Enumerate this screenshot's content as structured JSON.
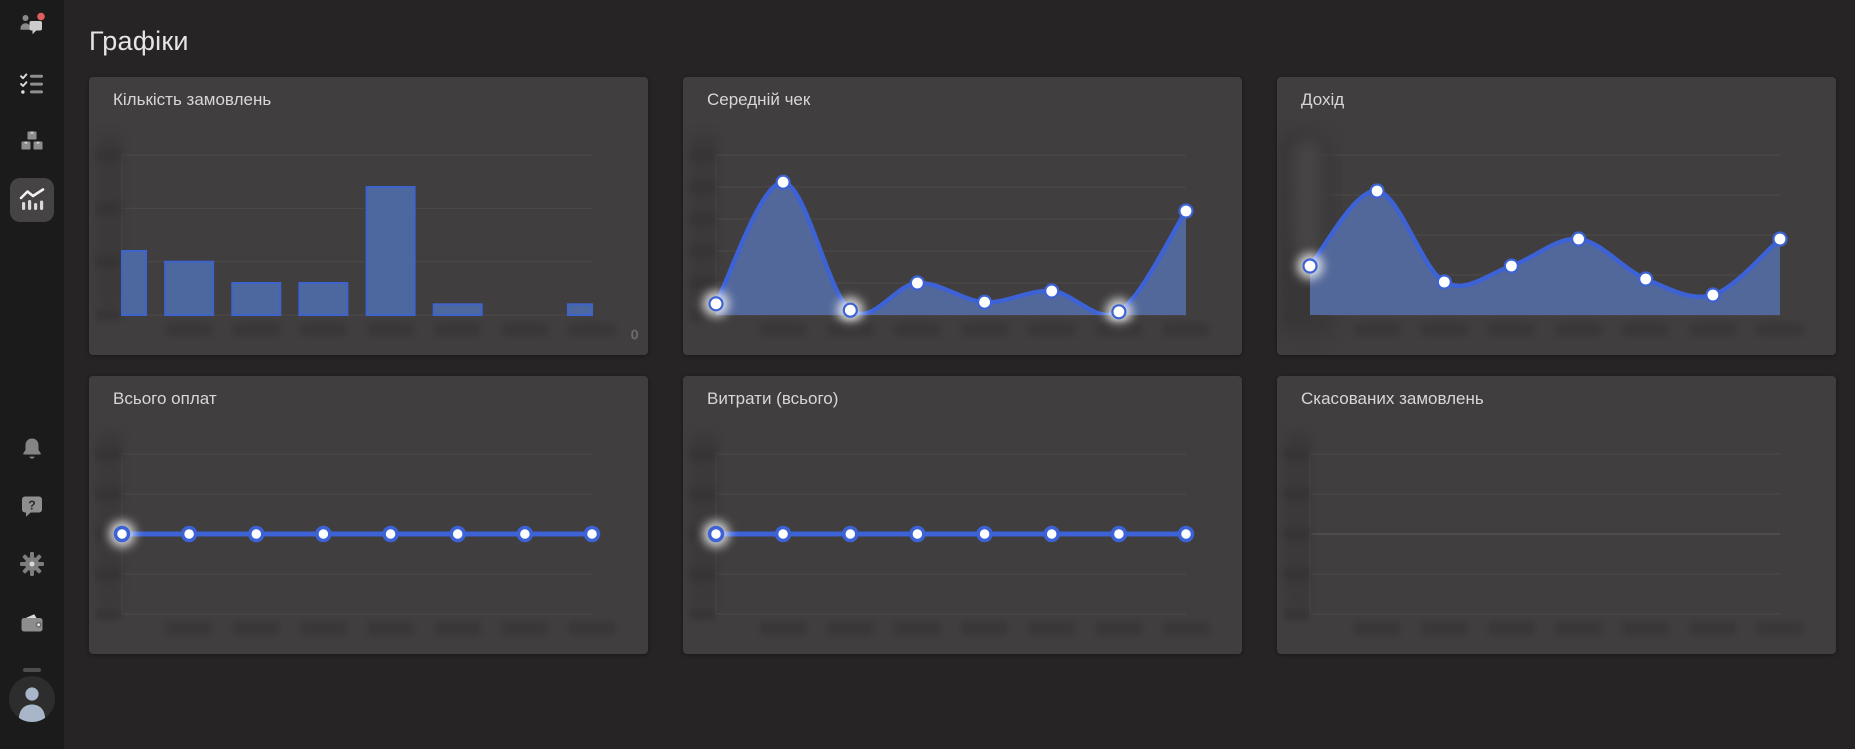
{
  "page": {
    "title": "Графіки"
  },
  "sidebar": {
    "items": [
      {
        "id": "clients",
        "icon": "people-chat-icon",
        "badge": true
      },
      {
        "id": "orders",
        "icon": "checklist-icon"
      },
      {
        "id": "products",
        "icon": "boxes-icon"
      },
      {
        "id": "analytics",
        "icon": "chart-icon",
        "active": true
      },
      {
        "id": "notifications",
        "icon": "bell-icon"
      },
      {
        "id": "help",
        "icon": "help-icon"
      },
      {
        "id": "settings",
        "icon": "gear-icon"
      },
      {
        "id": "billing",
        "icon": "wallet-icon"
      },
      {
        "id": "profile",
        "icon": "avatar-icon"
      }
    ],
    "badge_color": "#e25d5d"
  },
  "colors": {
    "page_bg": "#262424",
    "sidebar_bg": "#1c1b1b",
    "card_bg": "#403e3e",
    "grid": "#4b4949",
    "zero_line": "#585555",
    "accent": "#3c62d5",
    "area_fill": "#53689a",
    "bar_fill": "#4d689e",
    "bar_stroke": "#3e63cc",
    "dot_fill": "#ffffff",
    "smudge": "#353333",
    "heading_text": "#e6e4e4",
    "card_title_text": "#d8d6d6"
  },
  "chart_data": [
    {
      "type": "bar",
      "title": "Кількість замовлень",
      "categories_note": "8 time buckets — x tick labels blurred/redacted in screenshot",
      "values": [
        6,
        5,
        3,
        3,
        12,
        1,
        0,
        1
      ],
      "ylim": [
        0,
        15
      ],
      "divisions": 3,
      "x_ticks_blurred": true,
      "y_ticks_blurred": true,
      "stray_label": "0"
    },
    {
      "type": "area",
      "title": "Середній чек",
      "categories_note": "8 time buckets — x tick labels blurred/redacted in screenshot",
      "values": [
        35,
        415,
        15,
        100,
        40,
        75,
        10,
        325
      ],
      "ylim": [
        0,
        500
      ],
      "divisions": 5,
      "glow": [
        0,
        2,
        6
      ],
      "x_ticks_blurred": true,
      "y_ticks_blurred": true
    },
    {
      "type": "area",
      "title": "Дохід",
      "categories_note": "8 time buckets — x tick labels blurred/redacted in screenshot",
      "values": [
        2450,
        6200,
        1650,
        2450,
        3800,
        1800,
        1000,
        3800
      ],
      "ylim": [
        0,
        8000
      ],
      "divisions": 4,
      "glow": [
        0
      ],
      "big_smudge": true,
      "x_ticks_blurred": true,
      "y_ticks_blurred": true
    },
    {
      "type": "line",
      "title": "Всього оплат",
      "categories_note": "8 time buckets — x tick labels blurred/redacted in screenshot",
      "values": [
        0,
        0,
        0,
        0,
        0,
        0,
        0,
        0
      ],
      "ylim": [
        -1,
        1
      ],
      "divisions": 4,
      "glow": [
        0
      ],
      "x_ticks_blurred": true,
      "y_ticks_blurred": true
    },
    {
      "type": "line",
      "title": "Витрати (всього)",
      "categories_note": "8 time buckets — x tick labels blurred/redacted in screenshot",
      "values": [
        0,
        0,
        0,
        0,
        0,
        0,
        0,
        0
      ],
      "ylim": [
        -1,
        1
      ],
      "divisions": 4,
      "glow": [
        0
      ],
      "x_ticks_blurred": true,
      "y_ticks_blurred": true
    },
    {
      "type": "line",
      "title": "Скасованих замовлень",
      "categories_note": "no data series rendered — x tick labels blurred/redacted in screenshot",
      "values": [],
      "ylim": [
        -1,
        1
      ],
      "divisions": 4,
      "zero_line": true,
      "x_ticks_blurred": true,
      "y_ticks_blurred": true
    }
  ]
}
